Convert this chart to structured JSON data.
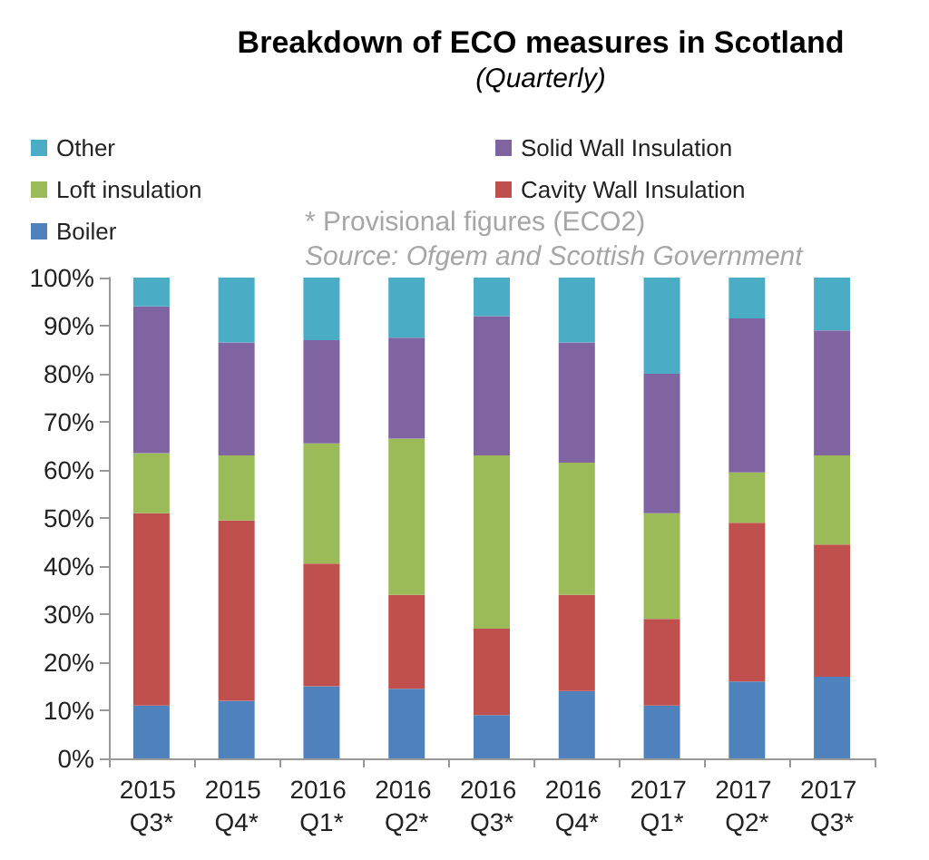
{
  "chart_data": {
    "type": "bar",
    "stacked": true,
    "title": "Breakdown of ECO measures in Scotland",
    "subtitle": "(Quarterly)",
    "categories": [
      "2015 Q3*",
      "2015 Q4*",
      "2016 Q1*",
      "2016 Q2*",
      "2016 Q3*",
      "2016 Q4*",
      "2017 Q1*",
      "2017 Q2*",
      "2017 Q3*"
    ],
    "series": [
      {
        "name": "Boiler",
        "color": "#4f81bd",
        "values": [
          11,
          12,
          15,
          14.5,
          9,
          14,
          11,
          16,
          17
        ]
      },
      {
        "name": "Cavity Wall Insulation",
        "color": "#c0504d",
        "values": [
          40,
          37.5,
          25.5,
          19.5,
          18,
          20,
          18,
          33,
          27.5
        ]
      },
      {
        "name": "Loft insulation",
        "color": "#9bbb59",
        "values": [
          12.5,
          13.5,
          25,
          32.5,
          36,
          27.5,
          22,
          10.5,
          18.5
        ]
      },
      {
        "name": "Solid Wall Insulation",
        "color": "#8064a2",
        "values": [
          30.5,
          23.5,
          21.5,
          21,
          29,
          25,
          29,
          32,
          26
        ]
      },
      {
        "name": "Other",
        "color": "#4bacc6",
        "values": [
          6,
          13.5,
          13,
          12.5,
          8,
          13.5,
          20,
          8.5,
          11
        ]
      }
    ],
    "ylim": [
      0,
      100
    ],
    "yticks": [
      {
        "value": 0,
        "label": "0%"
      },
      {
        "value": 10,
        "label": "10%"
      },
      {
        "value": 20,
        "label": "20%"
      },
      {
        "value": 30,
        "label": "30%"
      },
      {
        "value": 40,
        "label": "40%"
      },
      {
        "value": 50,
        "label": "50%"
      },
      {
        "value": 60,
        "label": "60%"
      },
      {
        "value": 70,
        "label": "70%"
      },
      {
        "value": 80,
        "label": "80%"
      },
      {
        "value": 90,
        "label": "90%"
      },
      {
        "value": 100,
        "label": "100%"
      }
    ],
    "grid": false,
    "legend": "top",
    "annotations": [
      "* Provisional figures (ECO2)",
      "Source: Ofgem and Scottish Government"
    ]
  }
}
